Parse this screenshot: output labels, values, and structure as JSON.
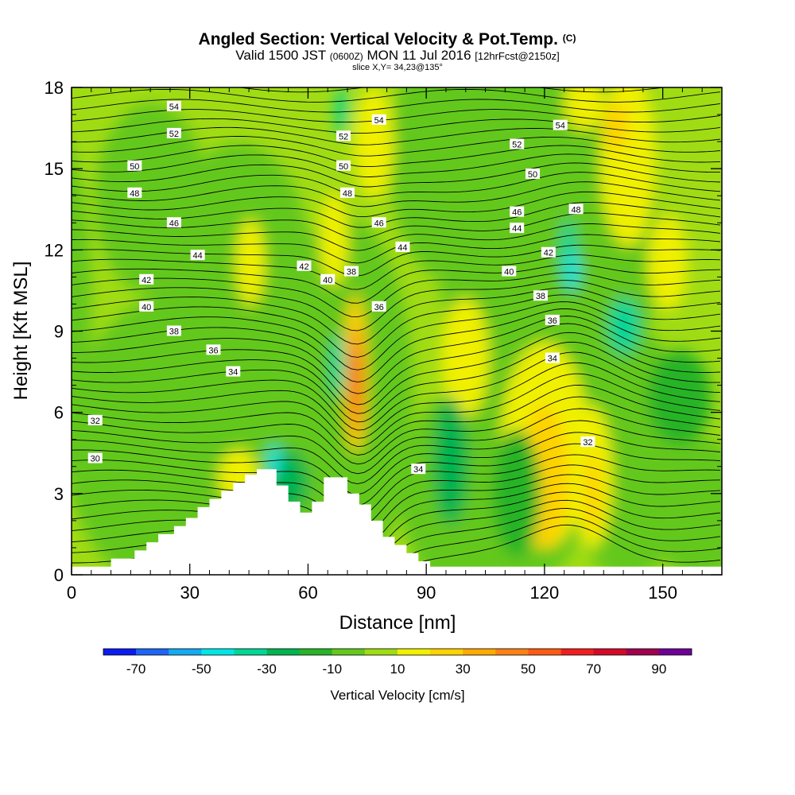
{
  "chart_data": {
    "type": "heatmap",
    "title": "Angled Section: Vertical Velocity & Pot.Temp.",
    "title_mark": "(C)",
    "valid_prefix": "Valid 1500 JST",
    "valid_utc": "(0600Z)",
    "valid_date": "MON 11 Jul 2016",
    "forecast": "[12hrFcst@2150z]",
    "slice": "slice X,Y= 34,23@135°",
    "xlabel": "Distance [nm]",
    "ylabel": "Height [Kft MSL]",
    "xlim": [
      0,
      165
    ],
    "ylim": [
      0,
      18
    ],
    "xticks": [
      "0",
      "30",
      "60",
      "90",
      "120",
      "150"
    ],
    "yticks": [
      "0",
      "3",
      "6",
      "9",
      "12",
      "15",
      "18"
    ],
    "colorbar": {
      "label": "Vertical Velocity [cm/s]",
      "ticks": [
        "-70",
        "-50",
        "-30",
        "-10",
        "10",
        "30",
        "50",
        "70",
        "90"
      ],
      "colors": [
        "#0a1cf0",
        "#1e64f5",
        "#14aaf0",
        "#00e6e6",
        "#00d696",
        "#00b450",
        "#28b428",
        "#64c81e",
        "#a0dc14",
        "#f0f000",
        "#ffd200",
        "#ffaa00",
        "#ff8214",
        "#ff5a14",
        "#f01e1e",
        "#d20a28",
        "#a00050",
        "#6e0096"
      ]
    },
    "terrain_kft": [
      [
        0,
        0.3
      ],
      [
        10,
        0.3
      ],
      [
        10,
        0.6
      ],
      [
        13,
        0.6
      ],
      [
        16,
        0.6
      ],
      [
        16,
        0.9
      ],
      [
        19,
        0.9
      ],
      [
        19,
        1.2
      ],
      [
        22,
        1.2
      ],
      [
        22,
        1.5
      ],
      [
        26,
        1.5
      ],
      [
        26,
        1.8
      ],
      [
        29,
        1.8
      ],
      [
        29,
        2.1
      ],
      [
        32,
        2.1
      ],
      [
        32,
        2.5
      ],
      [
        35,
        2.5
      ],
      [
        35,
        2.8
      ],
      [
        38,
        2.8
      ],
      [
        38,
        3.1
      ],
      [
        41,
        3.1
      ],
      [
        41,
        3.4
      ],
      [
        44,
        3.4
      ],
      [
        44,
        3.7
      ],
      [
        47,
        3.7
      ],
      [
        47,
        3.9
      ],
      [
        52,
        3.9
      ],
      [
        52,
        3.3
      ],
      [
        55,
        3.3
      ],
      [
        55,
        2.7
      ],
      [
        58,
        2.7
      ],
      [
        58,
        2.3
      ],
      [
        61,
        2.3
      ],
      [
        61,
        2.7
      ],
      [
        64,
        2.7
      ],
      [
        64,
        3.6
      ],
      [
        70,
        3.6
      ],
      [
        70,
        3.0
      ],
      [
        73,
        3.0
      ],
      [
        73,
        2.6
      ],
      [
        76,
        2.6
      ],
      [
        76,
        2.0
      ],
      [
        79,
        2.0
      ],
      [
        79,
        1.4
      ],
      [
        82,
        1.4
      ],
      [
        82,
        1.1
      ],
      [
        85,
        1.1
      ],
      [
        85,
        0.8
      ],
      [
        88,
        0.8
      ],
      [
        88,
        0.5
      ],
      [
        91,
        0.5
      ],
      [
        91,
        0.3
      ],
      [
        165,
        0.3
      ]
    ],
    "theta_labels": [
      {
        "x": 26,
        "y": 17.3,
        "text": "54"
      },
      {
        "x": 78,
        "y": 16.8,
        "text": "54"
      },
      {
        "x": 124,
        "y": 16.6,
        "text": "54"
      },
      {
        "x": 26,
        "y": 16.3,
        "text": "52"
      },
      {
        "x": 69,
        "y": 16.2,
        "text": "52"
      },
      {
        "x": 113,
        "y": 15.9,
        "text": "52"
      },
      {
        "x": 16,
        "y": 15.1,
        "text": "50"
      },
      {
        "x": 69,
        "y": 15.1,
        "text": "50"
      },
      {
        "x": 117,
        "y": 14.8,
        "text": "50"
      },
      {
        "x": 16,
        "y": 14.1,
        "text": "48"
      },
      {
        "x": 70,
        "y": 14.1,
        "text": "48"
      },
      {
        "x": 128,
        "y": 13.5,
        "text": "48"
      },
      {
        "x": 26,
        "y": 13.0,
        "text": "46"
      },
      {
        "x": 78,
        "y": 13.0,
        "text": "46"
      },
      {
        "x": 113,
        "y": 13.4,
        "text": "46"
      },
      {
        "x": 32,
        "y": 11.8,
        "text": "44"
      },
      {
        "x": 84,
        "y": 12.1,
        "text": "44"
      },
      {
        "x": 113,
        "y": 12.8,
        "text": "44"
      },
      {
        "x": 19,
        "y": 10.9,
        "text": "42"
      },
      {
        "x": 59,
        "y": 11.4,
        "text": "42"
      },
      {
        "x": 121,
        "y": 11.9,
        "text": "42"
      },
      {
        "x": 19,
        "y": 9.9,
        "text": "40"
      },
      {
        "x": 65,
        "y": 10.9,
        "text": "40"
      },
      {
        "x": 111,
        "y": 11.2,
        "text": "40"
      },
      {
        "x": 26,
        "y": 9.0,
        "text": "38"
      },
      {
        "x": 71,
        "y": 11.2,
        "text": "38"
      },
      {
        "x": 119,
        "y": 10.3,
        "text": "38"
      },
      {
        "x": 36,
        "y": 8.3,
        "text": "36"
      },
      {
        "x": 78,
        "y": 9.9,
        "text": "36"
      },
      {
        "x": 122,
        "y": 9.4,
        "text": "36"
      },
      {
        "x": 41,
        "y": 7.5,
        "text": "34"
      },
      {
        "x": 88,
        "y": 3.9,
        "text": "34"
      },
      {
        "x": 122,
        "y": 8.0,
        "text": "34"
      },
      {
        "x": 6,
        "y": 5.7,
        "text": "32"
      },
      {
        "x": 131,
        "y": 4.9,
        "text": "32"
      },
      {
        "x": 6,
        "y": 4.3,
        "text": "30"
      }
    ]
  }
}
